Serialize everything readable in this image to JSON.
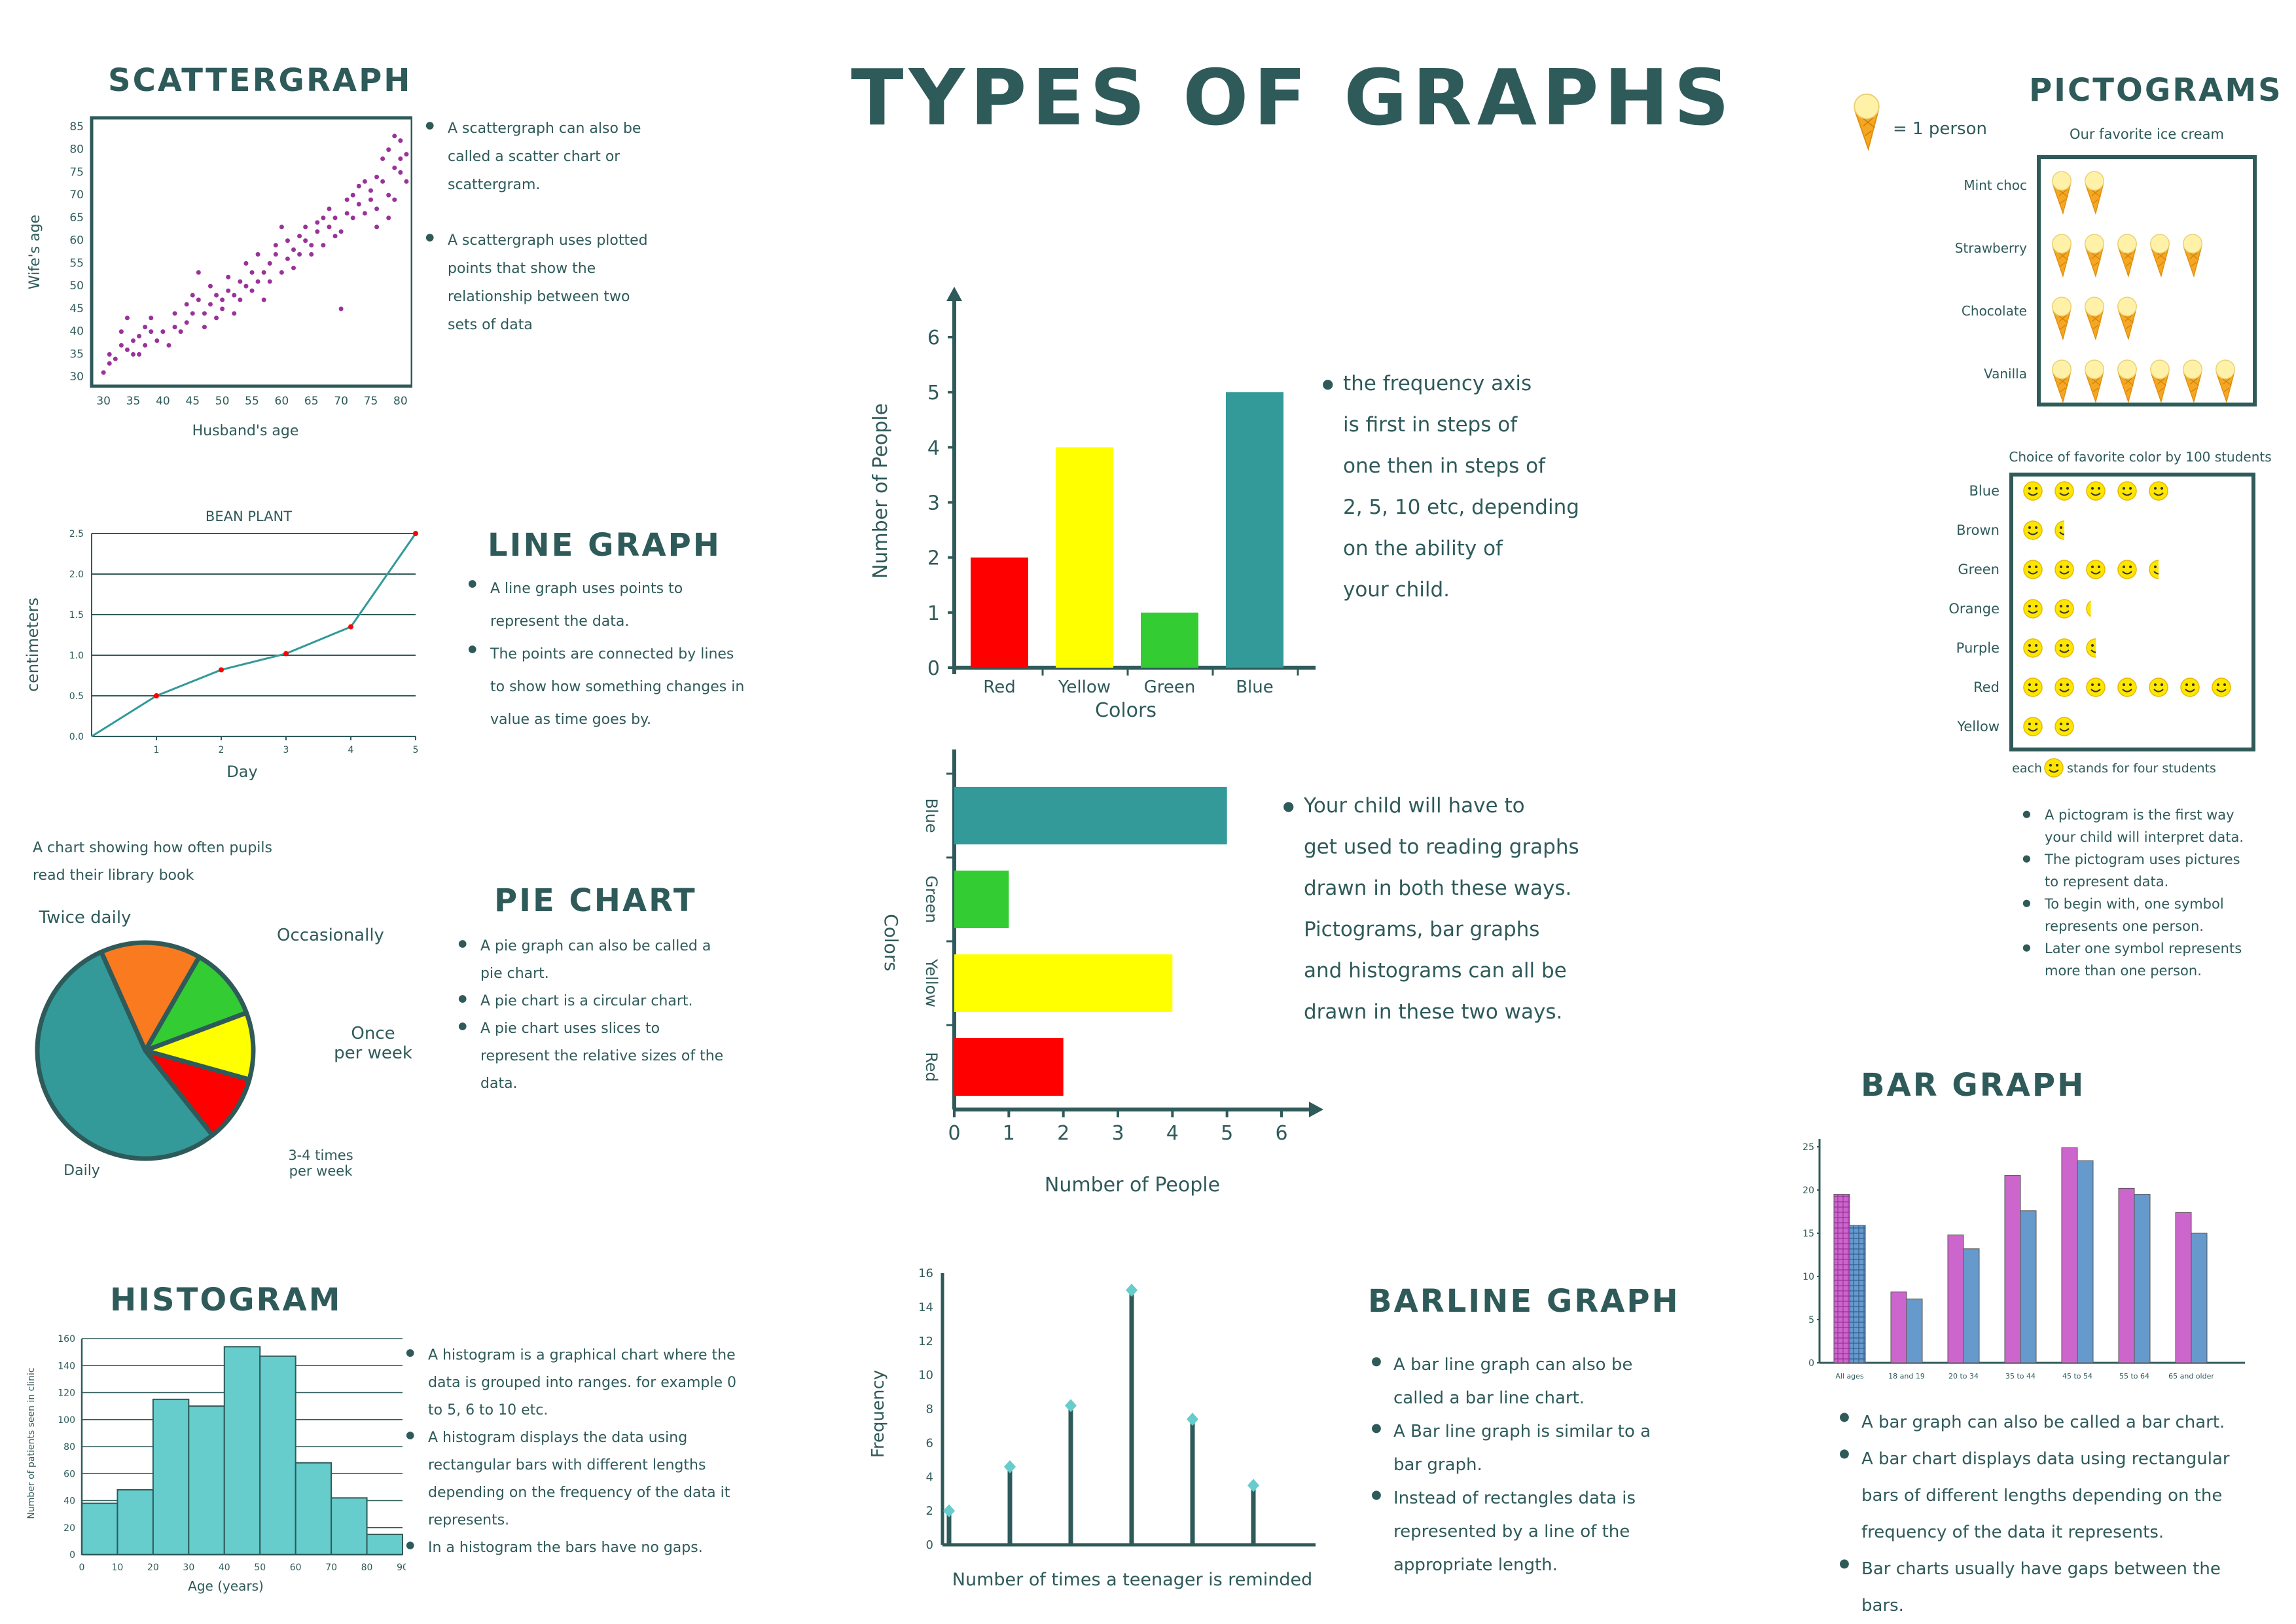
{
  "page": {
    "title": "TYPES OF GRAPHS"
  },
  "scattergraph": {
    "heading": "SCATTERGRAPH",
    "bullets": [
      "A scattergraph can also be called a scatter chart or scattergram.",
      "A scattergraph uses plotted points that show the relationship between two sets of data"
    ],
    "chart_data": {
      "type": "scatter",
      "xlabel": "Husband's age",
      "ylabel": "Wife's age",
      "xlim": [
        28,
        82
      ],
      "ylim": [
        28,
        87
      ],
      "x_ticks": [
        "30",
        "35",
        "40",
        "45",
        "50",
        "55",
        "60",
        "65",
        "70",
        "75",
        "80"
      ],
      "y_ticks": [
        "30",
        "35",
        "40",
        "45",
        "50",
        "55",
        "60",
        "65",
        "70",
        "75",
        "80",
        "85"
      ],
      "points": [
        [
          30,
          31
        ],
        [
          31,
          33
        ],
        [
          31,
          35
        ],
        [
          32,
          34
        ],
        [
          33,
          37
        ],
        [
          33,
          40
        ],
        [
          34,
          36
        ],
        [
          34,
          43
        ],
        [
          35,
          38
        ],
        [
          35,
          35
        ],
        [
          36,
          39
        ],
        [
          36,
          35
        ],
        [
          37,
          41
        ],
        [
          37,
          37
        ],
        [
          38,
          43
        ],
        [
          38,
          40
        ],
        [
          39,
          38
        ],
        [
          40,
          40
        ],
        [
          41,
          37
        ],
        [
          42,
          44
        ],
        [
          42,
          41
        ],
        [
          43,
          40
        ],
        [
          44,
          46
        ],
        [
          44,
          42
        ],
        [
          45,
          48
        ],
        [
          45,
          44
        ],
        [
          46,
          53
        ],
        [
          46,
          47
        ],
        [
          47,
          44
        ],
        [
          47,
          41
        ],
        [
          48,
          46
        ],
        [
          48,
          50
        ],
        [
          49,
          43
        ],
        [
          49,
          48
        ],
        [
          50,
          47
        ],
        [
          50,
          45
        ],
        [
          51,
          49
        ],
        [
          51,
          52
        ],
        [
          52,
          48
        ],
        [
          52,
          44
        ],
        [
          53,
          51
        ],
        [
          53,
          47
        ],
        [
          54,
          50
        ],
        [
          54,
          55
        ],
        [
          55,
          49
        ],
        [
          55,
          53
        ],
        [
          56,
          51
        ],
        [
          56,
          57
        ],
        [
          57,
          47
        ],
        [
          57,
          53
        ],
        [
          58,
          55
        ],
        [
          58,
          51
        ],
        [
          59,
          57
        ],
        [
          59,
          59
        ],
        [
          60,
          53
        ],
        [
          60,
          63
        ],
        [
          61,
          56
        ],
        [
          61,
          60
        ],
        [
          62,
          58
        ],
        [
          62,
          54
        ],
        [
          63,
          61
        ],
        [
          63,
          57
        ],
        [
          64,
          60
        ],
        [
          64,
          63
        ],
        [
          65,
          57
        ],
        [
          65,
          59
        ],
        [
          66,
          62
        ],
        [
          66,
          64
        ],
        [
          67,
          59
        ],
        [
          67,
          65
        ],
        [
          68,
          63
        ],
        [
          68,
          67
        ],
        [
          69,
          61
        ],
        [
          69,
          65
        ],
        [
          70,
          45
        ],
        [
          70,
          62
        ],
        [
          71,
          66
        ],
        [
          71,
          69
        ],
        [
          72,
          65
        ],
        [
          72,
          70
        ],
        [
          73,
          68
        ],
        [
          73,
          72
        ],
        [
          74,
          66
        ],
        [
          74,
          73
        ],
        [
          75,
          71
        ],
        [
          75,
          69
        ],
        [
          76,
          74
        ],
        [
          76,
          67
        ],
        [
          77,
          73
        ],
        [
          77,
          78
        ],
        [
          78,
          80
        ],
        [
          78,
          70
        ],
        [
          79,
          83
        ],
        [
          79,
          76
        ],
        [
          80,
          75
        ],
        [
          80,
          78
        ],
        [
          76,
          63
        ],
        [
          78,
          65
        ],
        [
          79,
          69
        ],
        [
          81,
          79
        ],
        [
          80,
          82
        ],
        [
          81,
          73
        ]
      ]
    }
  },
  "line_graph": {
    "heading": "LINE GRAPH",
    "bullets": [
      "A line graph uses points to represent the data.",
      "The points are connected by lines to show how something changes in value as time goes by."
    ],
    "chart_data": {
      "type": "line",
      "title": "BEAN PLANT",
      "xlabel": "Day",
      "ylabel": "centimeters",
      "x": [
        0,
        1,
        2,
        3,
        4,
        5
      ],
      "y": [
        0,
        0.5,
        0.82,
        1.02,
        1.35,
        2.5
      ],
      "xlim": [
        0,
        5
      ],
      "ylim": [
        0,
        2.5
      ],
      "x_ticks": [
        "1",
        "2",
        "3",
        "4",
        "5"
      ],
      "y_ticks": [
        "0.0",
        "0.5",
        "1.0",
        "1.5",
        "2.0",
        "2.5"
      ]
    }
  },
  "pie_chart": {
    "heading": "PIE CHART",
    "caption": "A chart showing how often pupils read their library book",
    "bullets": [
      "A pie graph can also be called a pie chart.",
      "A pie chart is a circular chart.",
      "A pie chart uses slices to represent the relative sizes of the data."
    ],
    "chart_data": {
      "type": "pie",
      "slices": [
        {
          "label": "Twice daily",
          "value": 15,
          "color": "#f97a1f"
        },
        {
          "label": "Occasionally",
          "value": 11,
          "color": "#33cc33"
        },
        {
          "label": "Once per week",
          "value": 10,
          "color": "#ffff00"
        },
        {
          "label": "3-4 times per week",
          "value": 10,
          "color": "#ff0000"
        },
        {
          "label": "Daily",
          "value": 54,
          "color": "#339999"
        }
      ]
    }
  },
  "histogram": {
    "heading": "HISTOGRAM",
    "bullets": [
      "A histogram is a graphical chart where the data is grouped into ranges. for example 0 to 5, 6 to 10 etc.",
      "A histogram displays the data using rectangular bars with different lengths depending on the frequency of the data it represents.",
      "In a histogram the bars have no gaps."
    ],
    "chart_data": {
      "type": "bar",
      "xlabel": "Age (years)",
      "ylabel": "Number of patients seen in clinic",
      "x_ticks": [
        "0",
        "10",
        "20",
        "30",
        "40",
        "50",
        "60",
        "70",
        "80",
        "90"
      ],
      "y_ticks": [
        "0",
        "20",
        "40",
        "60",
        "80",
        "100",
        "120",
        "140",
        "160"
      ],
      "bins": [
        [
          0,
          10
        ],
        [
          10,
          20
        ],
        [
          20,
          30
        ],
        [
          30,
          40
        ],
        [
          40,
          50
        ],
        [
          50,
          60
        ],
        [
          60,
          70
        ],
        [
          70,
          80
        ],
        [
          80,
          90
        ]
      ],
      "values": [
        38,
        48,
        115,
        110,
        154,
        147,
        68,
        42,
        15
      ],
      "ylim": [
        0,
        160
      ]
    }
  },
  "vertical_bar": {
    "note": "the frequency axis is first in steps of one then in steps of 2, 5, 10 etc, depending on the ability of your child.",
    "note_lines": [
      "the frequency axis",
      "is first in steps of",
      "one then in steps of",
      "2, 5, 10 etc, depending",
      "on the ability of",
      "your child."
    ],
    "chart_data": {
      "type": "bar",
      "xlabel": "Colors",
      "ylabel": "Number of People",
      "categories": [
        "Red",
        "Yellow",
        "Green",
        "Blue"
      ],
      "values": [
        2,
        4,
        1,
        5
      ],
      "colors": [
        "#ff0000",
        "#ffff00",
        "#33cc33",
        "#339999"
      ],
      "ylim": [
        0,
        6
      ],
      "y_ticks": [
        "0",
        "1",
        "2",
        "3",
        "4",
        "5",
        "6"
      ]
    }
  },
  "horizontal_bar": {
    "note_lines": [
      "Your child will have to",
      "get used to reading graphs",
      "drawn in both these ways.",
      "Pictograms,  bar graphs",
      "and histograms can all be",
      "drawn in these two ways."
    ],
    "chart_data": {
      "type": "bar",
      "orientation": "horizontal",
      "xlabel": "Number of People",
      "ylabel": "Colors",
      "categories": [
        "Blue",
        "Green",
        "Yellow",
        "Red"
      ],
      "values": [
        5,
        1,
        4,
        2
      ],
      "colors": [
        "#339999",
        "#33cc33",
        "#ffff00",
        "#ff0000"
      ],
      "xlim": [
        0,
        6
      ],
      "x_ticks": [
        "0",
        "1",
        "2",
        "3",
        "4",
        "5",
        "6"
      ]
    }
  },
  "barline_graph": {
    "heading": "BARLINE GRAPH",
    "bullets": [
      "A bar line graph can also be called a bar line chart.",
      "A Bar line graph is similar to a bar graph.",
      "Instead of rectangles data is represented by a line of the appropriate length."
    ],
    "chart_data": {
      "type": "bar",
      "style": "lollipop",
      "xlabel": "Number of times a teenager is reminded",
      "ylabel": "Frequency",
      "values": [
        2,
        4.6,
        8.2,
        15,
        7.4,
        3.5
      ],
      "ylim": [
        0,
        16
      ],
      "y_ticks": [
        "0",
        "2",
        "4",
        "6",
        "8",
        "10",
        "12",
        "14",
        "16"
      ]
    }
  },
  "pictograms": {
    "heading": "PICTOGRAMS",
    "key_text": "= 1 person",
    "ice_title": "Our favorite ice cream",
    "ice_rows": [
      {
        "label": "Mint choc",
        "count": 2
      },
      {
        "label": "Strawberry",
        "count": 5
      },
      {
        "label": "Chocolate",
        "count": 3
      },
      {
        "label": "Vanilla",
        "count": 6
      }
    ],
    "smiley_title": "Choice of favorite color by 100 students",
    "smiley_rows": [
      {
        "label": "Blue",
        "count": 5,
        "color": "#339999"
      },
      {
        "label": "Brown",
        "count": 1.5,
        "color": "#8b4513"
      },
      {
        "label": "Green",
        "count": 4.5,
        "color": "#33cc33"
      },
      {
        "label": "Orange",
        "count": 2.25,
        "color": "#f97a1f"
      },
      {
        "label": "Purple",
        "count": 2.5,
        "color": "#9933cc"
      },
      {
        "label": "Red",
        "count": 7,
        "color": "#ff0000"
      },
      {
        "label": "Yellow",
        "count": 2,
        "color": "#ffff00"
      }
    ],
    "key2_prefix": "each",
    "key2_suffix": "stands for four students",
    "bullets": [
      "A pictogram is the first way your child will interpret data.",
      "The pictogram uses pictures to represent data.",
      "To begin with, one symbol represents one person.",
      "Later one symbol represents more than one person."
    ]
  },
  "bar_graph": {
    "heading": "BAR GRAPH",
    "bullets": [
      "A bar graph can also be called a bar chart.",
      "A bar chart displays data using rectangular bars of different lengths depending on the frequency of the data it represents.",
      "Bar charts usually have gaps between the bars."
    ],
    "chart_data": {
      "type": "bar",
      "categories": [
        "All ages",
        "18 and 19",
        "20 to 34",
        "35 to 44",
        "45 to 54",
        "55 to 64",
        "65 and older"
      ],
      "series": [
        {
          "values": [
            19.5,
            8.2,
            14.8,
            21.7,
            24.9,
            20.2,
            17.4
          ],
          "color": "#cc66cc"
        },
        {
          "values": [
            15.9,
            7.4,
            13.2,
            17.6,
            23.4,
            19.5,
            15.0
          ],
          "color": "#6699cc"
        }
      ],
      "ylim": [
        0,
        25
      ],
      "y_ticks": [
        "0",
        "5",
        "10",
        "15",
        "20",
        "25"
      ]
    }
  }
}
